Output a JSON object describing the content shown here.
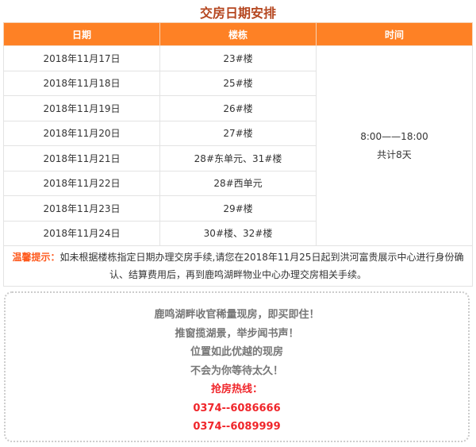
{
  "title": "交房日期安排",
  "columns": [
    "日期",
    "楼栋",
    "时间"
  ],
  "rows": [
    {
      "date": "2018年11月17日",
      "building": "23#楼"
    },
    {
      "date": "2018年11月18日",
      "building": "25#楼"
    },
    {
      "date": "2018年11月19日",
      "building": "26#楼"
    },
    {
      "date": "2018年11月20日",
      "building": "27#楼"
    },
    {
      "date": "2018年11月21日",
      "building": "28#东单元、31#楼"
    },
    {
      "date": "2018年11月22日",
      "building": "28#西单元"
    },
    {
      "date": "2018年11月23日",
      "building": "29#楼"
    },
    {
      "date": "2018年11月24日",
      "building": "30#楼、32#楼"
    }
  ],
  "time": {
    "range": "8:00——18:00",
    "total": "共计8天"
  },
  "tip": {
    "label": "温馨提示：",
    "text": "如未根据楼栋指定日期办理交房手续,请您在2018年11月25日起到洪河富贵展示中心进行身份确认、结算费用后，再到鹿鸣湖畔物业中心办理交房相关手续。"
  },
  "promo": {
    "lines": [
      "鹿鸣湖畔收官稀量现房，即买即住！",
      "推窗揽湖景，举步闻书声！",
      "位置如此优越的现房",
      "不会为你等待太久！"
    ],
    "hotline_label": "抢房热线：",
    "phones": [
      "0374--6086666",
      "0374--6089999"
    ]
  },
  "colors": {
    "header": "#fe8125",
    "title": "#b5461f",
    "tip_label": "#fe5a1e",
    "hotline": "#f0262b"
  }
}
